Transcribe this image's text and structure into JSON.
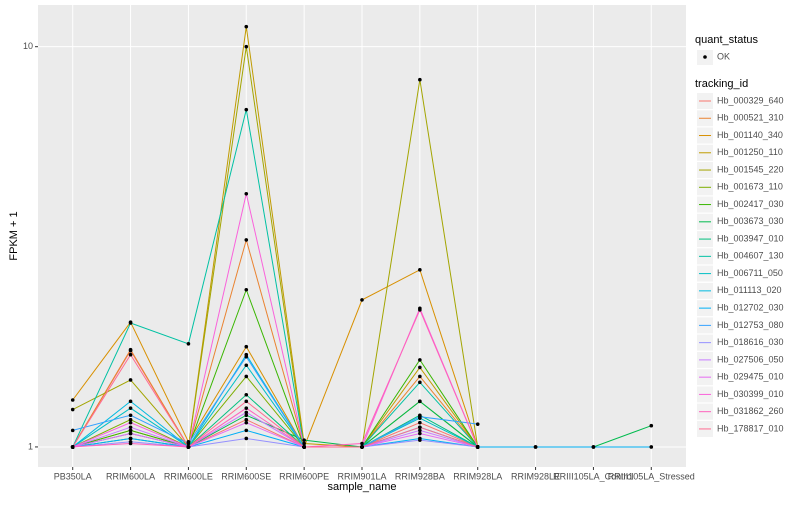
{
  "chart_data": {
    "type": "line",
    "x_label": "sample_name",
    "y_label": "FPKM + 1",
    "categories": [
      "PB350LA",
      "RRIM600LA",
      "RRIM600LE",
      "RRIM600SE",
      "RRIM600PE",
      "RRIM901LA",
      "RRIM928BA",
      "RRIM928LA",
      "RRIM928LE",
      "RRIII105LA_Control",
      "RRIII105LA_Stressed"
    ],
    "ylog": true,
    "ylim": [
      0.891,
      12.71
    ],
    "yticks": [
      1,
      10
    ],
    "grid": true,
    "shape_legend": {
      "title": "quant_status",
      "labels": [
        "OK"
      ]
    },
    "legend_title": "tracking_id",
    "legend_position": "right",
    "series": [
      {
        "name": "Hb_000329_640",
        "color": "#F8766D",
        "values": [
          1,
          1.74,
          1,
          1.17,
          1,
          1,
          1.15,
          1,
          null,
          null,
          null
        ]
      },
      {
        "name": "Hb_000521_310",
        "color": "#EA8331",
        "values": [
          1,
          1.75,
          1,
          3.29,
          1,
          1,
          1.5,
          1,
          null,
          null,
          null
        ]
      },
      {
        "name": "Hb_001140_340",
        "color": "#D89000",
        "values": [
          1.31,
          2.05,
          1.03,
          1.78,
          1,
          2.33,
          2.77,
          1,
          null,
          null,
          null
        ]
      },
      {
        "name": "Hb_001250_110",
        "color": "#C09B00",
        "values": [
          1,
          1.1,
          1,
          11.22,
          1.02,
          1,
          1.58,
          1,
          null,
          null,
          null
        ]
      },
      {
        "name": "Hb_001545_220",
        "color": "#A3A500",
        "values": [
          1.24,
          1.47,
          1,
          10,
          1,
          1,
          8.27,
          1,
          null,
          null,
          null
        ]
      },
      {
        "name": "Hb_001673_110",
        "color": "#7CAE00",
        "values": [
          1,
          1.17,
          1,
          1.5,
          1,
          1,
          1.3,
          1,
          null,
          null,
          null
        ]
      },
      {
        "name": "Hb_002417_030",
        "color": "#39B600",
        "values": [
          1,
          1.1,
          1,
          2.47,
          1,
          1,
          1.65,
          1,
          null,
          null,
          null
        ]
      },
      {
        "name": "Hb_003673_030",
        "color": "#00BB4E",
        "values": [
          1,
          1.05,
          1,
          1.2,
          1.04,
          1,
          1.3,
          1,
          1,
          1,
          1.13
        ]
      },
      {
        "name": "Hb_003947_010",
        "color": "#00BF7D",
        "values": [
          1,
          1.08,
          1,
          1.35,
          1,
          1,
          1.2,
          1,
          null,
          null,
          null
        ]
      },
      {
        "name": "Hb_004607_130",
        "color": "#00C1A3",
        "values": [
          1,
          2.04,
          1.81,
          6.96,
          1,
          1,
          1.45,
          1,
          null,
          null,
          null
        ]
      },
      {
        "name": "Hb_006711_050",
        "color": "#00BFC4",
        "values": [
          1,
          1.25,
          1,
          1.6,
          1,
          1,
          1.18,
          1,
          null,
          null,
          null
        ]
      },
      {
        "name": "Hb_011113_020",
        "color": "#00BAE0",
        "values": [
          1,
          1.3,
          1,
          1.7,
          1,
          1,
          1.12,
          1,
          null,
          null,
          null
        ]
      },
      {
        "name": "Hb_012702_030",
        "color": "#00B0F6",
        "values": [
          1,
          1.05,
          1,
          1.1,
          1,
          1,
          1.05,
          1,
          1,
          1,
          1
        ]
      },
      {
        "name": "Hb_012753_080",
        "color": "#35A2FF",
        "values": [
          1.1,
          1.2,
          1.02,
          1.68,
          1,
          1,
          1.19,
          1.14,
          null,
          null,
          null
        ]
      },
      {
        "name": "Hb_018616_030",
        "color": "#9590FF",
        "values": [
          1,
          1.03,
          1,
          1.05,
          1,
          1,
          1.04,
          1,
          null,
          null,
          null
        ]
      },
      {
        "name": "Hb_027506_050",
        "color": "#C77CFF",
        "values": [
          1,
          1.12,
          1,
          1.22,
          1,
          1,
          1.1,
          1,
          null,
          null,
          null
        ]
      },
      {
        "name": "Hb_029475_010",
        "color": "#E76BF3",
        "values": [
          1,
          1.08,
          1,
          1.15,
          1,
          1,
          1.08,
          1,
          null,
          null,
          null
        ]
      },
      {
        "name": "Hb_030399_010",
        "color": "#FA62DB",
        "values": [
          1,
          1.15,
          1,
          4.29,
          1,
          1,
          2.22,
          1,
          null,
          null,
          null
        ]
      },
      {
        "name": "Hb_031862_260",
        "color": "#FF62BC",
        "values": [
          1,
          1.02,
          1,
          1.25,
          1,
          1.02,
          2.2,
          1,
          null,
          null,
          null
        ]
      },
      {
        "name": "Hb_178817_010",
        "color": "#FF6C91",
        "values": [
          1,
          1.7,
          1,
          1.3,
          1,
          1,
          1.12,
          1,
          null,
          null,
          null
        ]
      }
    ]
  }
}
